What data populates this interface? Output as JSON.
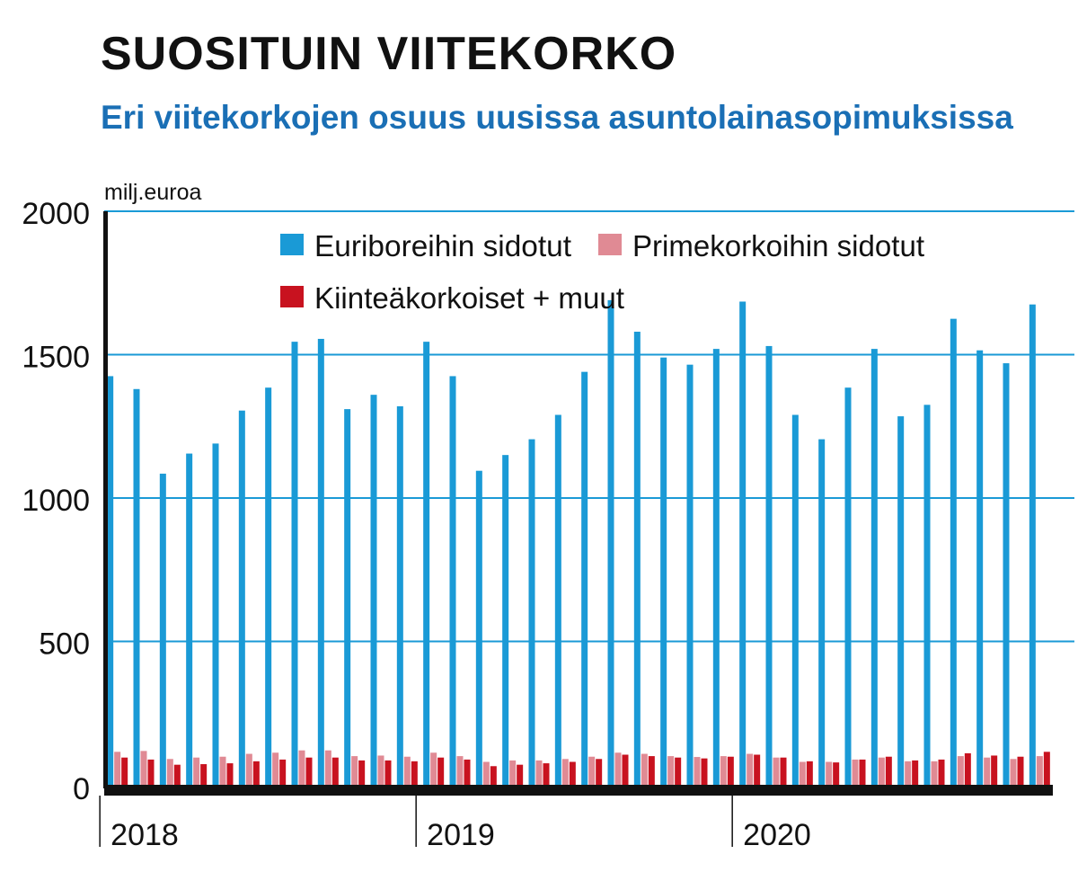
{
  "title": "SUOSITUIN VIITEKORKO",
  "subtitle": "Eri viitekorkojen osuus uusissa asuntolainasopimuksissa",
  "chart_data": {
    "type": "bar",
    "unit_label": "milj.euroa",
    "ylim": [
      0,
      2000
    ],
    "yticks": [
      "0",
      "500",
      "1000",
      "1500",
      "2000"
    ],
    "ytick_values": [
      0,
      500,
      1000,
      1500,
      2000
    ],
    "grid": true,
    "legend_placement": "top-center",
    "colors": {
      "euribor": "#1a9ad6",
      "prime": "#e08a94",
      "fixed": "#c8121f",
      "grid": "#1a9ad6",
      "axis": "#111111"
    },
    "year_labels": [
      "2018",
      "2019",
      "2020"
    ],
    "year_start_index": [
      0,
      12,
      24
    ],
    "series": [
      {
        "name": "Euriboreihin sidotut",
        "values": [
          1425,
          1380,
          1085,
          1155,
          1190,
          1305,
          1385,
          1545,
          1555,
          1310,
          1360,
          1320,
          1545,
          1425,
          1095,
          1150,
          1205,
          1290,
          1440,
          1690,
          1580,
          1490,
          1465,
          1520,
          1685,
          1530,
          1290,
          1205,
          1385,
          1520,
          1285,
          1325,
          1625,
          1515,
          1470,
          1675
        ]
      },
      {
        "name": "Primekorkoihin sidotut",
        "values": [
          115,
          118,
          90,
          95,
          98,
          108,
          112,
          120,
          120,
          100,
          102,
          98,
          112,
          100,
          80,
          85,
          85,
          90,
          98,
          112,
          108,
          100,
          97,
          100,
          108,
          95,
          80,
          80,
          88,
          95,
          82,
          82,
          100,
          95,
          90,
          100
        ]
      },
      {
        "name": "Kiinteäkorkoiset + muut",
        "values": [
          95,
          88,
          70,
          72,
          75,
          82,
          88,
          95,
          95,
          85,
          85,
          82,
          95,
          88,
          65,
          70,
          75,
          80,
          90,
          105,
          100,
          95,
          92,
          98,
          105,
          95,
          82,
          78,
          88,
          98,
          85,
          88,
          110,
          102,
          98,
          115
        ]
      }
    ]
  }
}
